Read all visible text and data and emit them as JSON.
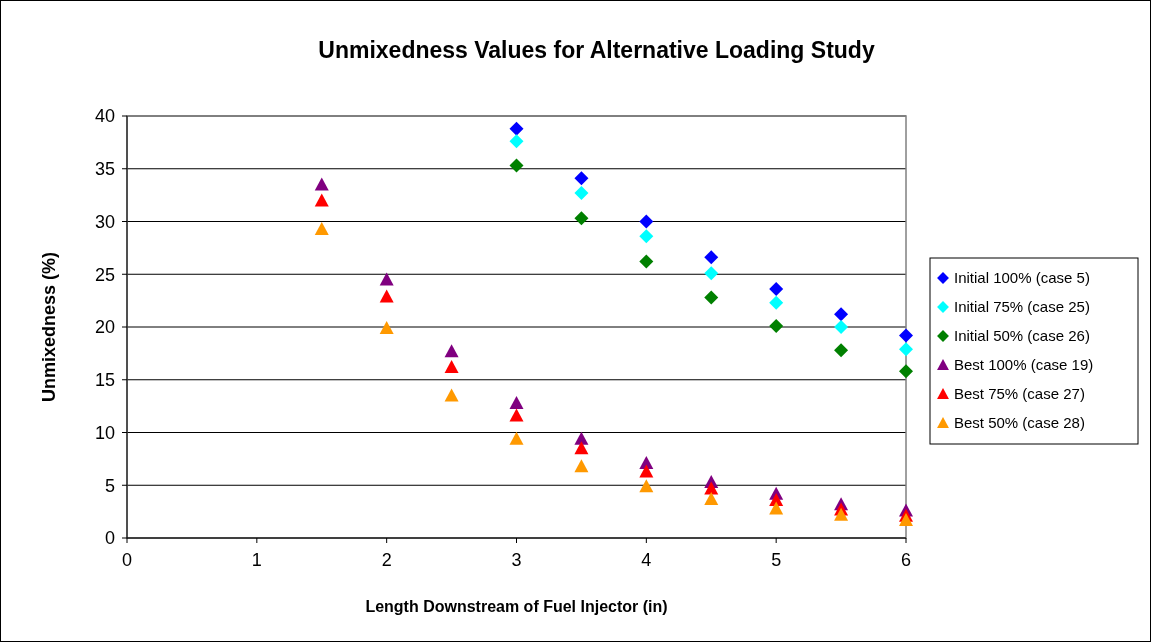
{
  "chart_data": {
    "type": "scatter",
    "title": "Unmixedness Values for Alternative Loading Study",
    "xlabel": "Length Downstream of Fuel Injector (in)",
    "ylabel": "Unmixedness (%)",
    "xlim": [
      0,
      6
    ],
    "xticks": [
      0,
      1,
      2,
      3,
      4,
      5,
      6
    ],
    "ylim": [
      0,
      40
    ],
    "yticks": [
      0,
      5,
      10,
      15,
      20,
      25,
      30,
      35,
      40
    ],
    "grid": "y",
    "legend": "right",
    "series": [
      {
        "name": "Initial 100% (case 5)",
        "color": "#0000ff",
        "marker": "diamond",
        "x": [
          3,
          3.5,
          4,
          4.5,
          5,
          5.5,
          6
        ],
        "values": [
          38.8,
          34.1,
          30.0,
          26.6,
          23.6,
          21.2,
          19.2
        ]
      },
      {
        "name": "Initial 75% (case 25)",
        "color": "#00ffff",
        "marker": "diamond",
        "x": [
          3,
          3.5,
          4,
          4.5,
          5,
          5.5,
          6
        ],
        "values": [
          37.6,
          32.7,
          28.6,
          25.1,
          22.3,
          20.0,
          17.9
        ]
      },
      {
        "name": "Initial 50% (case 26)",
        "color": "#008000",
        "marker": "diamond",
        "x": [
          3,
          3.5,
          4,
          4.5,
          5,
          5.5,
          6
        ],
        "values": [
          35.3,
          30.3,
          26.2,
          22.8,
          20.1,
          17.8,
          15.8
        ]
      },
      {
        "name": "Best 100% (case 19)",
        "color": "#800080",
        "marker": "triangle",
        "x": [
          1.5,
          2,
          2.5,
          3,
          3.5,
          4,
          4.5,
          5,
          5.5,
          6
        ],
        "values": [
          33.5,
          24.5,
          17.7,
          12.8,
          9.4,
          7.1,
          5.3,
          4.2,
          3.2,
          2.6
        ]
      },
      {
        "name": "Best 75% (case 27)",
        "color": "#ff0000",
        "marker": "triangle",
        "x": [
          1.5,
          2,
          2.5,
          3,
          3.5,
          4,
          4.5,
          5,
          5.5,
          6
        ],
        "values": [
          32.0,
          22.9,
          16.2,
          11.6,
          8.5,
          6.3,
          4.7,
          3.6,
          2.7,
          2.1
        ]
      },
      {
        "name": "Best 50% (case 28)",
        "color": "#ff9900",
        "marker": "triangle",
        "x": [
          1.5,
          2,
          2.5,
          3,
          3.5,
          4,
          4.5,
          5,
          5.5,
          6
        ],
        "values": [
          29.3,
          19.9,
          13.5,
          9.4,
          6.8,
          4.9,
          3.7,
          2.8,
          2.2,
          1.7
        ]
      }
    ]
  }
}
